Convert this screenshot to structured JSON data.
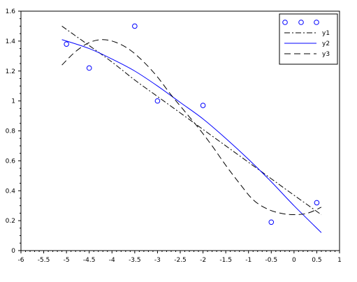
{
  "chart_data": {
    "type": "line",
    "title": "",
    "xlabel": "",
    "ylabel": "",
    "xlim": [
      -6,
      1
    ],
    "ylim": [
      0,
      1.6
    ],
    "xticks": [
      -6,
      -5.5,
      -5,
      -4.5,
      -4,
      -3.5,
      -3,
      -2.5,
      -2,
      -1.5,
      -1,
      -0.5,
      0,
      0.5,
      1
    ],
    "yticks": [
      0,
      0.2,
      0.4,
      0.6,
      0.8,
      1,
      1.2,
      1.4,
      1.6
    ],
    "xtick_labels": [
      "-6",
      "-5.5",
      "-5",
      "-4.5",
      "-4",
      "-3.5",
      "-3",
      "-2.5",
      "-2",
      "-1.5",
      "-1",
      "-0.5",
      "0",
      "0.5",
      "1"
    ],
    "ytick_labels": [
      "0",
      "0.2",
      "0.4",
      "0.6",
      "0.8",
      "1",
      "1.2",
      "1.4",
      "1.6"
    ],
    "grid": false,
    "legend_position": "top-right",
    "series": [
      {
        "name": "",
        "type": "scatter",
        "marker": "circle",
        "color": "#0000ff",
        "x": [
          -5,
          -4.5,
          -3.5,
          -3,
          -2,
          -0.5,
          0.5
        ],
        "y": [
          1.38,
          1.22,
          1.5,
          1.0,
          0.97,
          0.19,
          0.32
        ]
      },
      {
        "name": "y1",
        "type": "line",
        "style": "dash-dot",
        "color": "#000000",
        "x": [
          -5.1,
          -4.5,
          -4.0,
          -3.5,
          -3.0,
          -2.5,
          -2.0,
          -1.5,
          -1.0,
          -0.5,
          0.0,
          0.6
        ],
        "y": [
          1.5,
          1.37,
          1.26,
          1.14,
          1.03,
          0.92,
          0.81,
          0.7,
          0.59,
          0.48,
          0.37,
          0.24
        ]
      },
      {
        "name": "y2",
        "type": "line",
        "style": "solid",
        "color": "#0000ff",
        "x": [
          -5.1,
          -4.5,
          -4.0,
          -3.5,
          -3.0,
          -2.5,
          -2.0,
          -1.5,
          -1.0,
          -0.5,
          0.0,
          0.6
        ],
        "y": [
          1.41,
          1.35,
          1.28,
          1.2,
          1.1,
          0.99,
          0.88,
          0.75,
          0.61,
          0.46,
          0.3,
          0.12
        ]
      },
      {
        "name": "y3",
        "type": "line",
        "style": "dashed",
        "color": "#000000",
        "x": [
          -5.1,
          -4.8,
          -4.5,
          -4.2,
          -3.9,
          -3.6,
          -3.3,
          -3.0,
          -2.7,
          -2.4,
          -2.1,
          -1.8,
          -1.5,
          -1.2,
          -0.9,
          -0.6,
          -0.3,
          0.0,
          0.3,
          0.6
        ],
        "y": [
          1.24,
          1.33,
          1.39,
          1.41,
          1.39,
          1.34,
          1.26,
          1.16,
          1.04,
          0.93,
          0.82,
          0.7,
          0.57,
          0.45,
          0.34,
          0.28,
          0.25,
          0.24,
          0.25,
          0.29
        ]
      }
    ]
  },
  "colors": {
    "background": "#ffffff",
    "axis": "#000000",
    "blue": "#0000ff",
    "black": "#000000"
  }
}
